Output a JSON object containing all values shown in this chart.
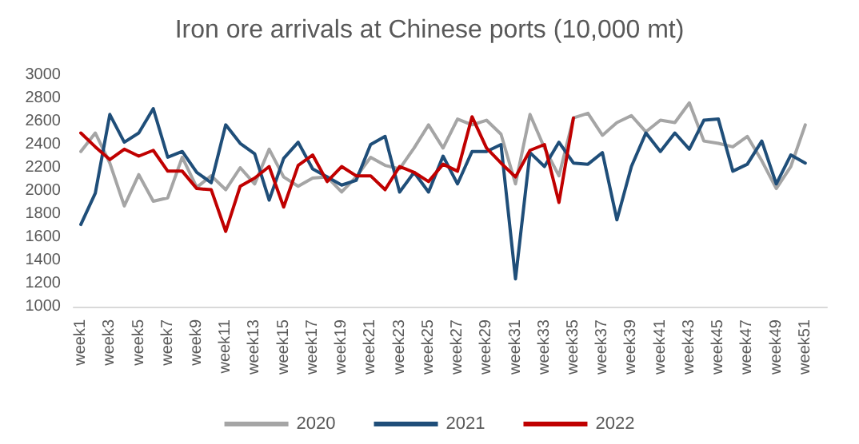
{
  "chart_data": {
    "type": "line",
    "title": "Iron ore arrivals at Chinese ports (10,000 mt)",
    "categories": [
      "week1",
      null,
      "week3",
      null,
      "week5",
      null,
      "week7",
      null,
      "week9",
      null,
      "week11",
      null,
      "week13",
      null,
      "week15",
      null,
      "week17",
      null,
      "week19",
      null,
      "week21",
      null,
      "week23",
      null,
      "week25",
      null,
      "week27",
      null,
      "week29",
      null,
      "week31",
      null,
      "week33",
      null,
      "week35",
      null,
      "week37",
      null,
      "week39",
      null,
      "week41",
      null,
      "week43",
      null,
      "week45",
      null,
      "week47",
      null,
      "week49",
      null,
      "week51",
      null
    ],
    "series": [
      {
        "name": "2020",
        "color": "#a5a5a5",
        "values": [
          2340,
          2500,
          2240,
          1870,
          2140,
          1910,
          1940,
          2290,
          2030,
          2130,
          2010,
          2200,
          2060,
          2360,
          2120,
          2040,
          2110,
          2120,
          1990,
          2120,
          2290,
          2220,
          2190,
          2370,
          2570,
          2370,
          2620,
          2570,
          2610,
          2490,
          2060,
          2660,
          2370,
          2130,
          2630,
          2670,
          2480,
          2590,
          2650,
          2510,
          2610,
          2590,
          2760,
          2430,
          2410,
          2380,
          2470,
          2260,
          2020,
          2210,
          2570,
          null
        ]
      },
      {
        "name": "2021",
        "color": "#1f4e79",
        "values": [
          1710,
          1980,
          2660,
          2420,
          2500,
          2710,
          2290,
          2340,
          2160,
          2070,
          2570,
          2410,
          2320,
          1920,
          2280,
          2420,
          2190,
          2120,
          2050,
          2090,
          2400,
          2470,
          1990,
          2160,
          1990,
          2300,
          2060,
          2340,
          2340,
          2400,
          1240,
          2330,
          2210,
          2420,
          2240,
          2230,
          2330,
          1750,
          2210,
          2500,
          2340,
          2500,
          2360,
          2610,
          2620,
          2170,
          2230,
          2430,
          2060,
          2310,
          2240,
          null
        ]
      },
      {
        "name": "2022",
        "color": "#c00000",
        "values": [
          2500,
          2380,
          2270,
          2360,
          2300,
          2350,
          2170,
          2170,
          2020,
          2010,
          1650,
          2040,
          2110,
          2210,
          1860,
          2220,
          2310,
          2080,
          2210,
          2130,
          2130,
          2010,
          2210,
          2160,
          2080,
          2230,
          2170,
          2640,
          2370,
          2240,
          2120,
          2350,
          2400,
          1900,
          2630,
          null,
          null,
          null,
          null,
          null,
          null,
          null,
          null,
          null,
          null,
          null,
          null,
          null,
          null,
          null,
          null,
          null
        ]
      }
    ],
    "ylim": [
      1000,
      3000
    ],
    "yticks": [
      1000,
      1200,
      1400,
      1600,
      1800,
      2000,
      2200,
      2400,
      2600,
      2800,
      3000
    ],
    "grid": false,
    "legend": "bottom",
    "marker": "none",
    "line_style": "solid"
  }
}
